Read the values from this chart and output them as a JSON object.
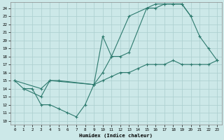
{
  "xlabel": "Humidex (Indice chaleur)",
  "bg_color": "#cce8e8",
  "line_color": "#2d7a6e",
  "grid_color": "#aacece",
  "xlim": [
    -0.5,
    23.5
  ],
  "ylim": [
    9.5,
    24.7
  ],
  "xticks": [
    0,
    1,
    2,
    3,
    4,
    5,
    6,
    7,
    8,
    9,
    10,
    11,
    12,
    13,
    14,
    15,
    16,
    17,
    18,
    19,
    20,
    21,
    22,
    23
  ],
  "yticks": [
    10,
    11,
    12,
    13,
    14,
    15,
    16,
    17,
    18,
    19,
    20,
    21,
    22,
    23,
    24
  ],
  "line1_x": [
    0,
    3,
    4,
    5,
    9,
    10,
    11,
    12,
    13,
    15,
    16,
    17,
    18,
    19,
    20
  ],
  "line1_y": [
    15,
    14,
    15,
    15,
    14.5,
    16,
    18,
    18,
    18.5,
    24,
    24,
    24.5,
    24.5,
    24.5,
    23
  ],
  "line2_x": [
    0,
    1,
    3,
    4,
    9,
    10,
    11,
    13,
    15,
    16,
    17,
    18,
    19,
    20,
    21,
    22,
    23
  ],
  "line2_y": [
    15,
    14,
    13,
    15,
    14.5,
    20.5,
    18,
    23,
    24,
    24.5,
    24.5,
    24.5,
    24.5,
    23,
    20.5,
    19,
    17.5
  ],
  "line3_x": [
    1,
    2,
    3,
    4,
    5,
    6,
    7,
    8,
    9,
    10,
    11,
    12,
    13,
    14,
    15,
    16,
    17,
    18,
    19,
    20,
    21,
    22,
    23
  ],
  "line3_y": [
    14,
    14,
    12,
    12,
    11.5,
    11,
    10.5,
    12,
    14.5,
    15,
    15.5,
    16,
    16,
    16.5,
    17,
    17,
    17,
    17.5,
    17,
    17,
    17,
    17,
    17.5
  ]
}
